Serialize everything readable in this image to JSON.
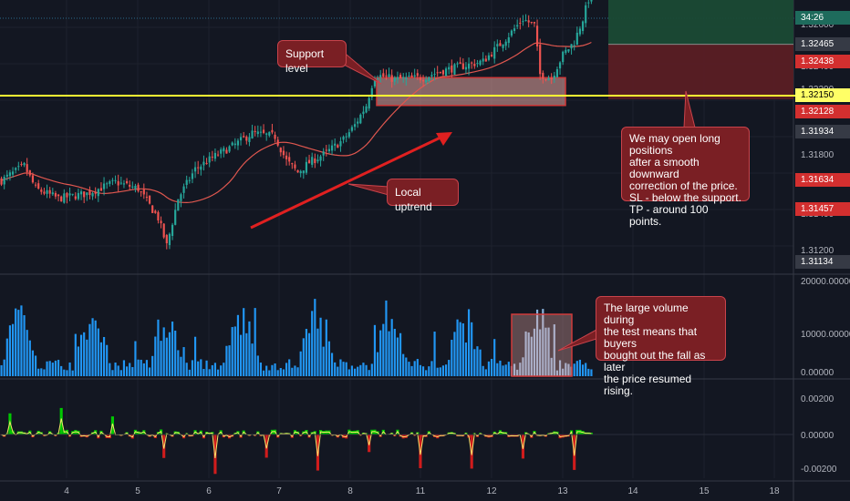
{
  "chart_data": {
    "type": "candlestick",
    "price_axis": {
      "ticks": [
        1.328,
        1.326,
        1.324,
        1.322,
        1.32,
        1.318,
        1.316,
        1.314,
        1.312
      ],
      "labels": [
        "1.32600",
        "1.32400",
        "1.32200",
        "1.31800",
        "1.31600",
        "1.31400",
        "1.31200"
      ],
      "tags": [
        {
          "label": "34:26",
          "value": 1.3281,
          "color": "#1e6b5c",
          "text_color": "#ffffff"
        },
        {
          "label": "1.32465",
          "value": 1.32465,
          "color": "#363a45",
          "text_color": "#ffffff"
        },
        {
          "label": "1.32438",
          "value": 1.32438,
          "color": "#d32f2f",
          "text_color": "#ffffff"
        },
        {
          "label": "1.32150",
          "value": 1.3215,
          "color": "#ffff66",
          "text_color": "#000000"
        },
        {
          "label": "1.32128",
          "value": 1.32128,
          "color": "#d32f2f",
          "text_color": "#ffffff"
        },
        {
          "label": "1.31934",
          "value": 1.31934,
          "color": "#363a45",
          "text_color": "#ffffff"
        },
        {
          "label": "1.31634",
          "value": 1.31634,
          "color": "#d32f2f",
          "text_color": "#ffffff"
        },
        {
          "label": "1.31457",
          "value": 1.31457,
          "color": "#d32f2f",
          "text_color": "#ffffff"
        },
        {
          "label": "1.31134",
          "value": 1.31134,
          "color": "#363a45",
          "text_color": "#ffffff"
        }
      ]
    },
    "volume_axis": {
      "labels": [
        "20000.00000",
        "10000.00000",
        "0.00000"
      ],
      "max": 20000
    },
    "osc_axis": {
      "labels": [
        "0.00200",
        "0.00000",
        "-0.00200"
      ]
    },
    "x_axis": {
      "labels": [
        "4",
        "5",
        "6",
        "7",
        "8",
        "11",
        "12",
        "13",
        "14",
        "15",
        "18"
      ]
    },
    "support_level": 1.3215,
    "current_price": 1.3281,
    "long_position": {
      "entry": 1.32465,
      "take_profit": 1.3285,
      "stop_loss": 1.32128
    },
    "support_zone": {
      "top": 1.3226,
      "bottom": 1.3209
    },
    "annotations": [
      "Support level",
      "Local uptrend",
      "We may open long positions\nafter a smooth downward\ncorrection of the price.\nSL - below the support.\nTP - around 100 points.",
      "The large volume during\nthe test means that buyers\nbought out the fall as later\nthe price resumed rising."
    ],
    "colors": {
      "background": "#131722",
      "bullish": "#26a69a",
      "bearish": "#ef5350",
      "volume": "#2196f3",
      "support_line": "#ffff33",
      "moving_average": "#e0574f",
      "osc_up": "#00c800",
      "osc_down": "#d01c1c",
      "osc_line": "#f5e56b"
    }
  }
}
